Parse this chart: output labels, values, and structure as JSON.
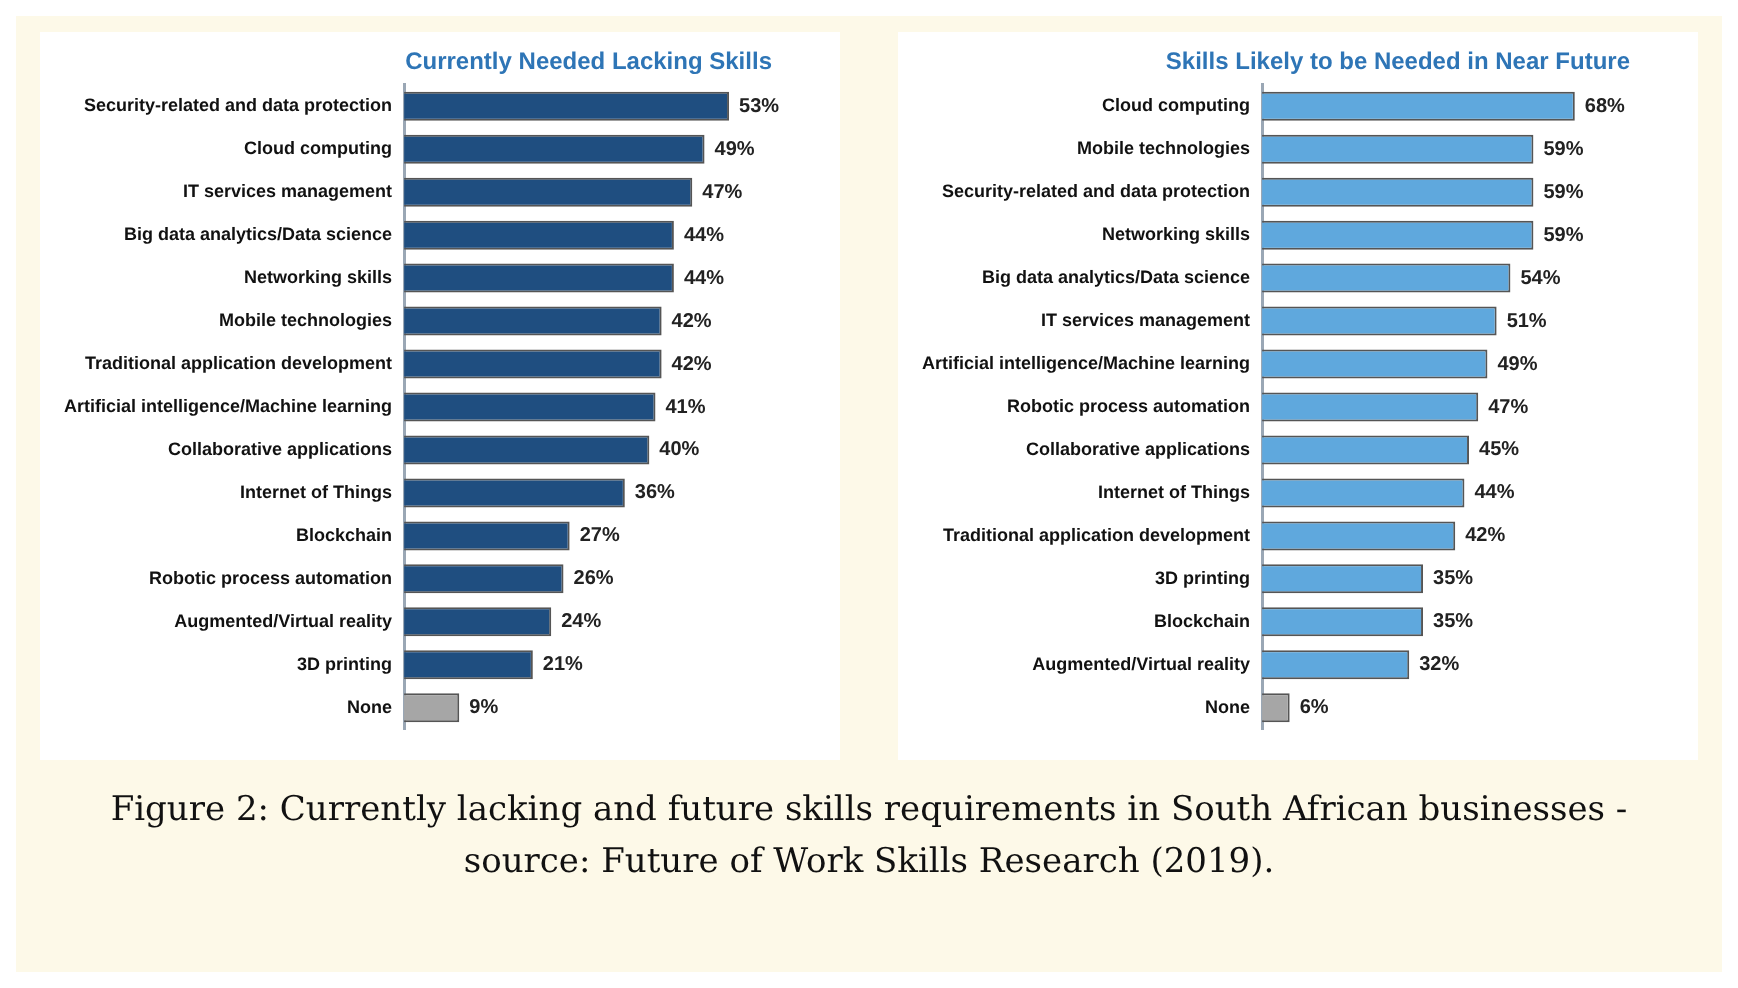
{
  "chart_data": [
    {
      "type": "bar",
      "orientation": "horizontal",
      "title": "Currently Needed Lacking Skills",
      "categories": [
        "Security-related and data protection",
        "Cloud computing",
        "IT services management",
        "Big data analytics/Data science",
        "Networking skills",
        "Mobile technologies",
        "Traditional application development",
        "Artificial intelligence/Machine learning",
        "Collaborative applications",
        "Internet of Things",
        "Blockchain",
        "Robotic process automation",
        "Augmented/Virtual reality",
        "3D printing",
        "None"
      ],
      "values": [
        53,
        49,
        47,
        44,
        44,
        42,
        42,
        41,
        40,
        36,
        27,
        26,
        24,
        21,
        9
      ],
      "value_labels": [
        "53%",
        "49%",
        "47%",
        "44%",
        "44%",
        "42%",
        "42%",
        "41%",
        "40%",
        "36%",
        "27%",
        "26%",
        "24%",
        "21%",
        "9%"
      ],
      "colors": [
        "#1f4e80",
        "#1f4e80",
        "#1f4e80",
        "#1f4e80",
        "#1f4e80",
        "#1f4e80",
        "#1f4e80",
        "#1f4e80",
        "#1f4e80",
        "#1f4e80",
        "#1f4e80",
        "#1f4e80",
        "#1f4e80",
        "#1f4e80",
        "#a6a6a6"
      ]
    },
    {
      "type": "bar",
      "orientation": "horizontal",
      "title": "Skills Likely to be Needed in Near Future",
      "categories": [
        "Cloud computing",
        "Mobile technologies",
        "Security-related and data protection",
        "Networking skills",
        "Big data analytics/Data science",
        "IT services management",
        "Artificial intelligence/Machine learning",
        "Robotic process automation",
        "Collaborative applications",
        "Internet of Things",
        "Traditional application development",
        "3D printing",
        "Blockchain",
        "Augmented/Virtual reality",
        "None"
      ],
      "values": [
        68,
        59,
        59,
        59,
        54,
        51,
        49,
        47,
        45,
        44,
        42,
        35,
        35,
        32,
        6
      ],
      "value_labels": [
        "68%",
        "59%",
        "59%",
        "59%",
        "54%",
        "51%",
        "49%",
        "47%",
        "45%",
        "44%",
        "42%",
        "35%",
        "35%",
        "32%",
        "6%"
      ],
      "colors": [
        "#5fa8dd",
        "#5fa8dd",
        "#5fa8dd",
        "#5fa8dd",
        "#5fa8dd",
        "#5fa8dd",
        "#5fa8dd",
        "#5fa8dd",
        "#5fa8dd",
        "#5fa8dd",
        "#5fa8dd",
        "#5fa8dd",
        "#5fa8dd",
        "#5fa8dd",
        "#a6a6a6"
      ],
      "annotations": [
        "Figure 2: Currently lacking and future skills requirements in South African businesses - source: Future of Work Skills Research (2019)."
      ]
    }
  ]
}
